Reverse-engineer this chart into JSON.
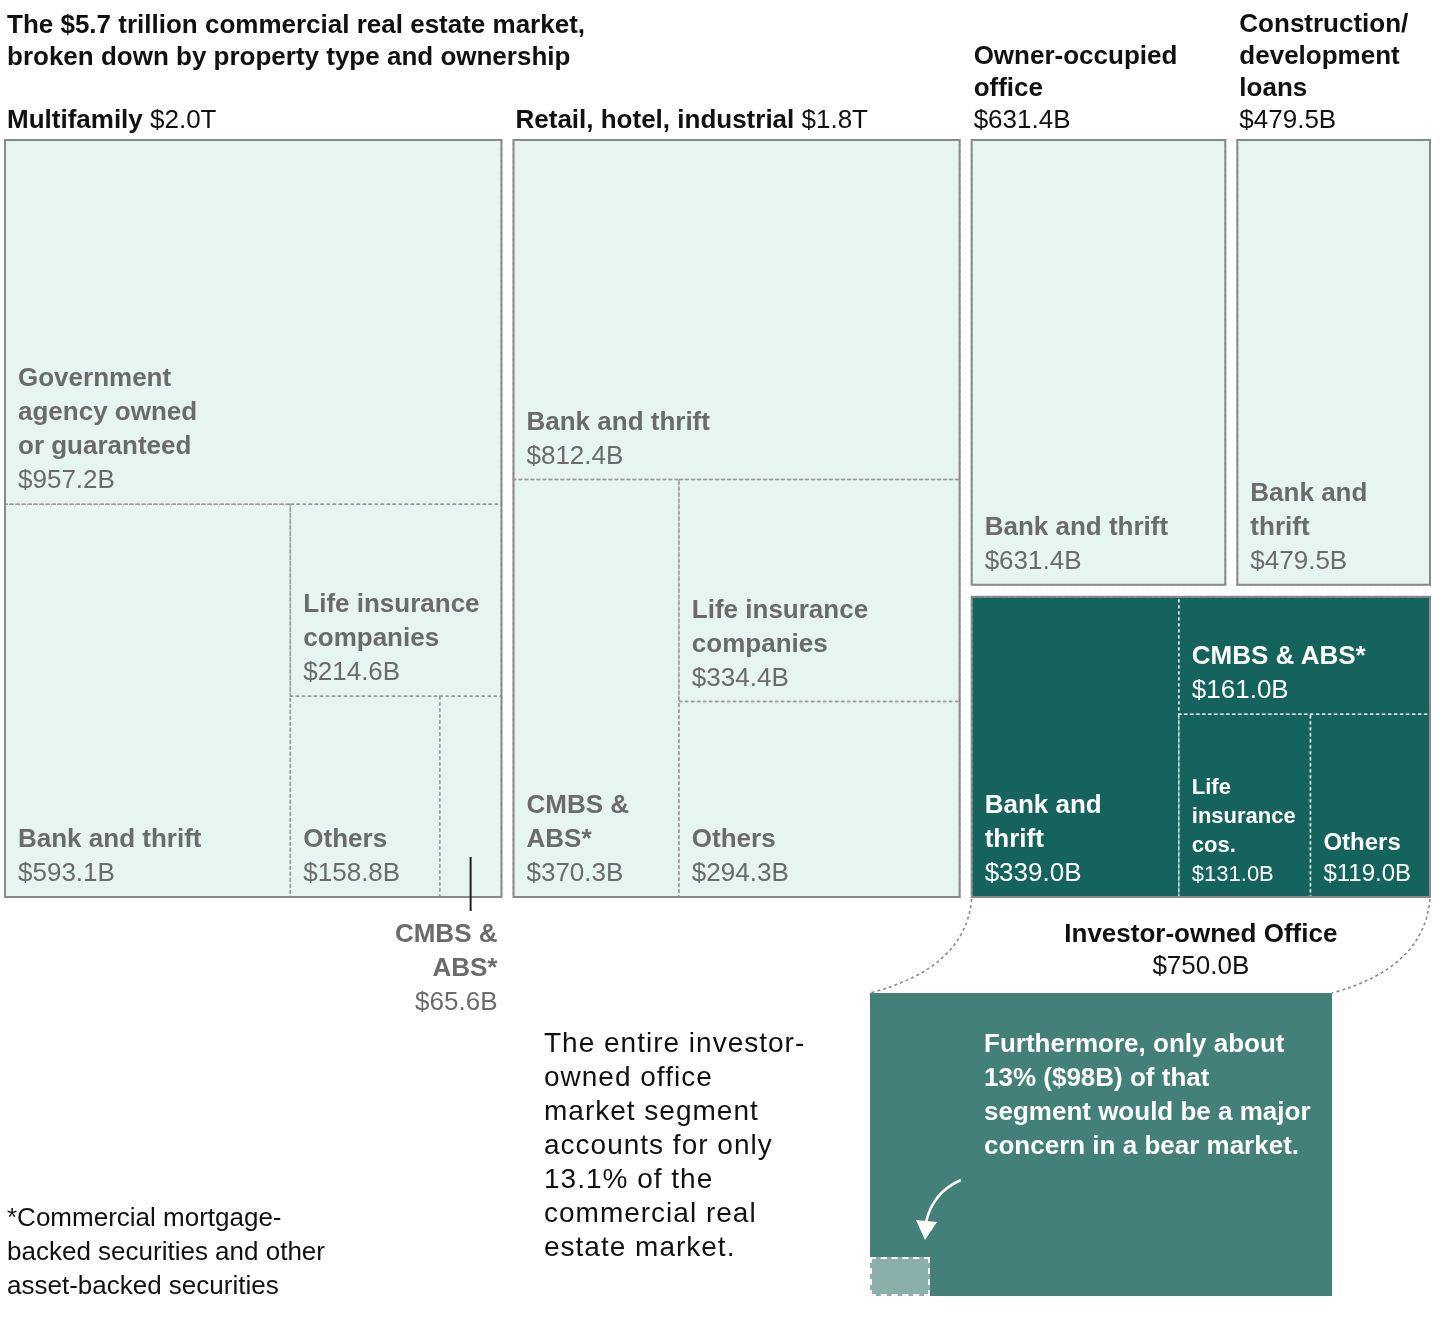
{
  "chart_data": {
    "type": "other",
    "title": "The $5.7 trillion commercial real estate market, broken down by property type and ownership",
    "categories": [
      "Government agency owned or guaranteed",
      "Bank and thrift",
      "Life insurance companies",
      "Others",
      "CMBS & ABS*",
      "Bank and thrift",
      "CMBS & ABS*",
      "Life insurance companies",
      "Others",
      "Bank and thrift",
      "Bank and thrift",
      "Bank and thrift",
      "CMBS & ABS*",
      "Life insurance cos.",
      "Others"
    ],
    "series": [
      {
        "name": "Multifamily",
        "color": "#e6f4f2",
        "values": [
          957.2,
          593.1,
          214.6,
          158.8,
          65.6,
          null,
          null,
          null,
          null,
          null,
          null,
          null,
          null,
          null,
          null
        ],
        "value_labels": [
          "$957.2B",
          "$593.1B",
          "$214.6B",
          "$158.8B",
          "$65.6B",
          null,
          null,
          null,
          null,
          null,
          null,
          null,
          null,
          null,
          null
        ]
      },
      {
        "name": "Retail, hotel, industrial",
        "color": "#e6f4f2",
        "values": [
          null,
          null,
          null,
          null,
          null,
          812.4,
          370.3,
          334.4,
          294.3,
          null,
          null,
          null,
          null,
          null,
          null
        ],
        "value_labels": [
          null,
          null,
          null,
          null,
          null,
          "$812.4B",
          "$370.3B",
          "$334.4B",
          "$294.3B",
          null,
          null,
          null,
          null,
          null,
          null
        ]
      },
      {
        "name": "Owner-occupied office",
        "color": "#e6f4f2",
        "values": [
          null,
          null,
          null,
          null,
          null,
          null,
          null,
          null,
          null,
          631.4,
          null,
          null,
          null,
          null,
          null
        ],
        "value_labels": [
          null,
          null,
          null,
          null,
          null,
          null,
          null,
          null,
          null,
          "$631.4B",
          null,
          null,
          null,
          null,
          null
        ]
      },
      {
        "name": "Construction/development loans",
        "color": "#e6f4f2",
        "values": [
          null,
          null,
          null,
          null,
          null,
          null,
          null,
          null,
          null,
          null,
          479.5,
          null,
          null,
          null,
          null
        ],
        "value_labels": [
          null,
          null,
          null,
          null,
          null,
          null,
          null,
          null,
          null,
          null,
          "$479.5B",
          null,
          null,
          null,
          null
        ]
      },
      {
        "name": "Investor-owned Office",
        "color": "#14635c",
        "values": [
          null,
          null,
          null,
          null,
          null,
          null,
          null,
          null,
          null,
          null,
          null,
          339.0,
          161.0,
          131.0,
          119.0
        ],
        "value_labels": [
          null,
          null,
          null,
          null,
          null,
          null,
          null,
          null,
          null,
          null,
          null,
          "$339.0B",
          "$161.0B",
          "$131.0B",
          "$119.0B"
        ]
      }
    ],
    "totals": [
      "$2.0T",
      "$1.8T",
      "$631.4B",
      "$479.5B",
      "$750.0B"
    ],
    "annotations": [
      "The entire investor-owned office market segment accounts for only 13.1% of the commercial real estate market.",
      "Furthermore, only about 13% ($98B) of that segment would be a major concern in a bear market.",
      "*Commercial mortgage-backed securities and other asset-backed securities"
    ]
  }
}
